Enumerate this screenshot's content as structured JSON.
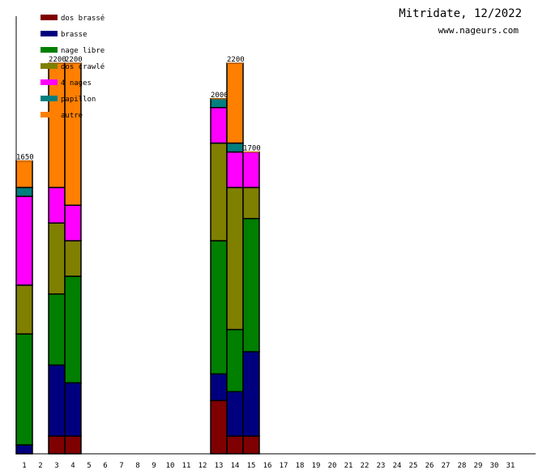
{
  "chart_data": {
    "type": "bar",
    "stacked": true,
    "title": "Mitridate, 12/2022",
    "subtitle": "www.nageurs.com",
    "xlabel": "",
    "ylabel": "",
    "ylim": [
      0,
      2200
    ],
    "legend_position": "top-left",
    "categories": [
      "1",
      "2",
      "3",
      "4",
      "5",
      "6",
      "7",
      "8",
      "9",
      "10",
      "11",
      "12",
      "13",
      "14",
      "15",
      "16",
      "17",
      "18",
      "19",
      "20",
      "21",
      "22",
      "23",
      "24",
      "25",
      "26",
      "27",
      "28",
      "29",
      "30",
      "31"
    ],
    "totals": {
      "1": "1650",
      "3": "2200",
      "4": "2200",
      "13": "2000",
      "14": "2200",
      "15": "1700"
    },
    "series": [
      {
        "name": "dos brassé",
        "color": "#7f0000",
        "values": {
          "1": 0,
          "3": 100,
          "4": 100,
          "13": 300,
          "14": 100,
          "15": 100
        }
      },
      {
        "name": "brasse",
        "color": "#00007f",
        "values": {
          "1": 50,
          "3": 400,
          "4": 300,
          "13": 150,
          "14": 250,
          "15": 475
        }
      },
      {
        "name": "nage libre",
        "color": "#007f00",
        "values": {
          "1": 625,
          "3": 400,
          "4": 600,
          "13": 750,
          "14": 350,
          "15": 750
        }
      },
      {
        "name": "dos crawlé",
        "color": "#7f7f00",
        "values": {
          "1": 275,
          "3": 400,
          "4": 200,
          "13": 550,
          "14": 800,
          "15": 175
        }
      },
      {
        "name": "4 nages",
        "color": "#ff00ff",
        "values": {
          "1": 500,
          "3": 200,
          "4": 200,
          "13": 200,
          "14": 200,
          "15": 200
        }
      },
      {
        "name": "papillon",
        "color": "#007f7f",
        "values": {
          "1": 50,
          "3": 0,
          "4": 0,
          "13": 50,
          "14": 50,
          "15": 0
        }
      },
      {
        "name": "autre",
        "color": "#ff7f00",
        "values": {
          "1": 150,
          "3": 700,
          "4": 800,
          "13": 0,
          "14": 450,
          "15": 0
        }
      }
    ]
  }
}
